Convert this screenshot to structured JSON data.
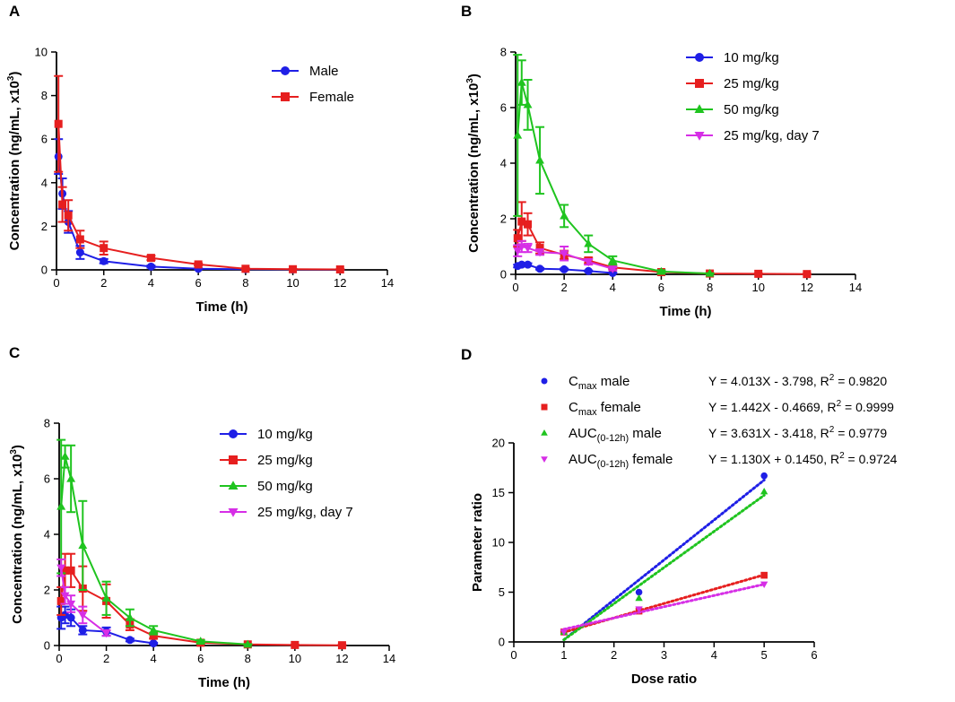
{
  "chart_data": [
    {
      "id": "A",
      "panel_label": "A",
      "type": "line",
      "xlabel": "Time (h)",
      "ylabel": "Concentration (ng/mL, x10",
      "ylabel_sup": "3",
      "ylabel_close": ")",
      "xlim": [
        0,
        14
      ],
      "ylim": [
        0,
        10
      ],
      "xticks": [
        0,
        2,
        4,
        6,
        8,
        10,
        12,
        14
      ],
      "yticks": [
        0,
        2,
        4,
        6,
        8,
        10
      ],
      "series": [
        {
          "name": "Male",
          "color": "#1f1fe6",
          "marker": "circle",
          "x": [
            0.083,
            0.25,
            0.5,
            1,
            2,
            4,
            6,
            8,
            10,
            12
          ],
          "y": [
            5.2,
            3.5,
            2.2,
            0.8,
            0.4,
            0.15,
            0.05,
            0.03,
            0.02,
            0.01
          ],
          "err": [
            0.8,
            0.7,
            0.5,
            0.3,
            0.1,
            0.05,
            0.02,
            0.01,
            0.01,
            0.01
          ]
        },
        {
          "name": "Female",
          "color": "#e61f1f",
          "marker": "square",
          "x": [
            0.083,
            0.25,
            0.5,
            1,
            2,
            4,
            6,
            8,
            10,
            12
          ],
          "y": [
            6.7,
            3.0,
            2.5,
            1.4,
            1.0,
            0.55,
            0.25,
            0.05,
            0.03,
            0.02
          ],
          "err": [
            2.2,
            0.8,
            0.7,
            0.4,
            0.3,
            0.1,
            0.05,
            0.02,
            0.01,
            0.01
          ]
        }
      ]
    },
    {
      "id": "B",
      "panel_label": "B",
      "type": "line",
      "xlabel": "Time (h)",
      "ylabel": "Concentration (ng/mL, x10",
      "ylabel_sup": "3",
      "ylabel_close": ")",
      "xlim": [
        0,
        14
      ],
      "ylim": [
        0,
        8
      ],
      "xticks": [
        0,
        2,
        4,
        6,
        8,
        10,
        12,
        14
      ],
      "yticks": [
        0,
        2,
        4,
        6,
        8
      ],
      "series": [
        {
          "name": "10 mg/kg",
          "color": "#1f1fe6",
          "marker": "circle",
          "x": [
            0.083,
            0.25,
            0.5,
            1,
            2,
            3,
            4
          ],
          "y": [
            0.3,
            0.35,
            0.35,
            0.2,
            0.18,
            0.12,
            0.05
          ],
          "err": [
            0.05,
            0.05,
            0.05,
            0.03,
            0.03,
            0.02,
            0.01
          ]
        },
        {
          "name": "25 mg/kg",
          "color": "#e61f1f",
          "marker": "square",
          "x": [
            0.083,
            0.25,
            0.5,
            1,
            2,
            3,
            4,
            6,
            8,
            10,
            12
          ],
          "y": [
            1.3,
            1.9,
            1.8,
            0.95,
            0.7,
            0.5,
            0.25,
            0.08,
            0.03,
            0.02,
            0.01
          ],
          "err": [
            0.3,
            0.7,
            0.4,
            0.2,
            0.15,
            0.1,
            0.05,
            0.02,
            0.01,
            0.01,
            0.01
          ]
        },
        {
          "name": "50 mg/kg",
          "color": "#1fc41f",
          "marker": "triangle-up",
          "x": [
            0.083,
            0.25,
            0.5,
            1,
            2,
            3,
            4,
            6,
            8
          ],
          "y": [
            5.0,
            6.9,
            6.1,
            4.1,
            2.1,
            1.1,
            0.5,
            0.1,
            0.03
          ],
          "err": [
            2.9,
            0.8,
            0.9,
            1.2,
            0.4,
            0.3,
            0.15,
            0.05,
            0.01
          ]
        },
        {
          "name": "25 mg/kg, day 7",
          "color": "#d62ee6",
          "marker": "triangle-down",
          "x": [
            0.083,
            0.25,
            0.5,
            1,
            2,
            3,
            4
          ],
          "y": [
            0.85,
            1.0,
            0.95,
            0.8,
            0.75,
            0.45,
            0.2
          ],
          "err": [
            0.2,
            0.2,
            0.15,
            0.1,
            0.25,
            0.1,
            0.05
          ]
        }
      ]
    },
    {
      "id": "C",
      "panel_label": "C",
      "type": "line",
      "xlabel": "Time (h)",
      "ylabel": "Concentration (ng/mL, x10",
      "ylabel_sup": "3",
      "ylabel_close": ")",
      "xlim": [
        0,
        14
      ],
      "ylim": [
        0,
        8
      ],
      "xticks": [
        0,
        2,
        4,
        6,
        8,
        10,
        12,
        14
      ],
      "yticks": [
        0,
        2,
        4,
        6,
        8
      ],
      "series": [
        {
          "name": "10 mg/kg",
          "color": "#1f1fe6",
          "marker": "circle",
          "x": [
            0.083,
            0.25,
            0.5,
            1,
            2,
            3,
            4
          ],
          "y": [
            1.0,
            1.1,
            1.0,
            0.55,
            0.5,
            0.2,
            0.08
          ],
          "err": [
            0.4,
            0.3,
            0.3,
            0.15,
            0.15,
            0.05,
            0.02
          ]
        },
        {
          "name": "25 mg/kg",
          "color": "#e61f1f",
          "marker": "square",
          "x": [
            0.083,
            0.25,
            0.5,
            1,
            2,
            3,
            4,
            6,
            8,
            10,
            12
          ],
          "y": [
            1.6,
            2.7,
            2.7,
            2.05,
            1.6,
            0.75,
            0.35,
            0.1,
            0.04,
            0.02,
            0.01
          ],
          "err": [
            0.5,
            0.6,
            0.6,
            0.8,
            0.6,
            0.2,
            0.1,
            0.03,
            0.01,
            0.01,
            0.01
          ]
        },
        {
          "name": "50 mg/kg",
          "color": "#1fc41f",
          "marker": "triangle-up",
          "x": [
            0.083,
            0.25,
            0.5,
            1,
            2,
            3,
            4,
            6,
            8
          ],
          "y": [
            5.0,
            6.8,
            6.0,
            3.6,
            1.7,
            1.0,
            0.55,
            0.15,
            0.04
          ],
          "err": [
            2.4,
            0.4,
            1.2,
            1.6,
            0.6,
            0.3,
            0.15,
            0.05,
            0.01
          ]
        },
        {
          "name": "25 mg/kg, day 7",
          "color": "#d62ee6",
          "marker": "triangle-down",
          "x": [
            0.083,
            0.25,
            0.5,
            1,
            2
          ],
          "y": [
            2.8,
            1.8,
            1.5,
            1.1,
            0.45
          ],
          "err": [
            0.3,
            0.3,
            0.3,
            0.3,
            0.1
          ]
        }
      ]
    },
    {
      "id": "D",
      "panel_label": "D",
      "type": "scatter",
      "xlabel": "Dose ratio",
      "ylabel": "Parameter ratio",
      "xlim": [
        0,
        6
      ],
      "ylim": [
        0,
        20
      ],
      "xticks": [
        0,
        1,
        2,
        3,
        4,
        5,
        6
      ],
      "yticks": [
        0,
        5,
        10,
        15,
        20
      ],
      "series": [
        {
          "name_main": "C",
          "name_sub": "max",
          "name_rest": " male",
          "color": "#1f1fe6",
          "marker": "circle",
          "equation": "Y = 4.013X - 3.798, R",
          "eq_sup": "2",
          "eq_tail": " = 0.9820",
          "slope": 4.013,
          "intercept": -3.798,
          "x": [
            1,
            2.5,
            5
          ],
          "y": [
            1,
            5.0,
            16.7
          ]
        },
        {
          "name_main": "C",
          "name_sub": "max",
          "name_rest": " female",
          "color": "#e61f1f",
          "marker": "square",
          "equation": "Y = 1.442X - 0.4669, R",
          "eq_sup": "2",
          "eq_tail": " = 0.9999",
          "slope": 1.442,
          "intercept": -0.4669,
          "x": [
            1,
            2.5,
            5
          ],
          "y": [
            1,
            3.1,
            6.7
          ]
        },
        {
          "name_main": "AUC",
          "name_sub": "(0-12h)",
          "name_rest": " male",
          "color": "#1fc41f",
          "marker": "triangle-up",
          "equation": "Y = 3.631X - 3.418, R",
          "eq_sup": "2",
          "eq_tail": " = 0.9779",
          "slope": 3.631,
          "intercept": -3.418,
          "x": [
            1,
            2.5,
            5
          ],
          "y": [
            1,
            4.4,
            15.1
          ]
        },
        {
          "name_main": "AUC",
          "name_sub": "(0-12h)",
          "name_rest": " female",
          "color": "#d62ee6",
          "marker": "triangle-down",
          "equation": "Y = 1.130X + 0.1450, R",
          "eq_sup": "2",
          "eq_tail": " = 0.9724",
          "slope": 1.13,
          "intercept": 0.145,
          "x": [
            1,
            2.5,
            5
          ],
          "y": [
            1,
            3.3,
            5.8
          ]
        }
      ]
    }
  ]
}
